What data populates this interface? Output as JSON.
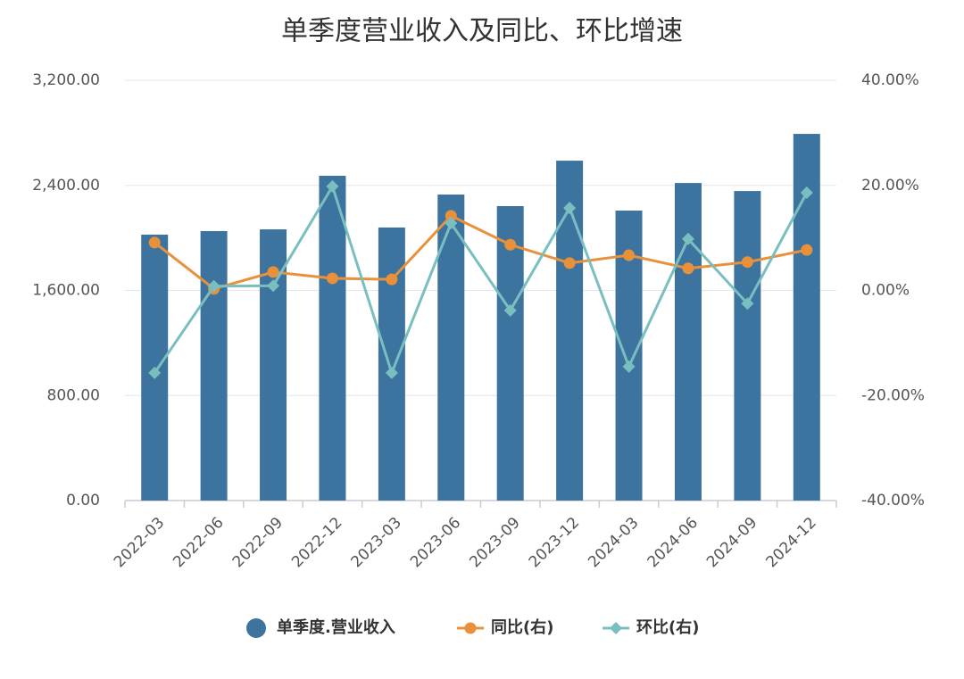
{
  "chart_data": {
    "type": "bar-line",
    "title": "单季度营业收入及同比、环比增速",
    "categories": [
      "2022-03",
      "2022-06",
      "2022-09",
      "2022-12",
      "2023-03",
      "2023-06",
      "2023-09",
      "2023-12",
      "2024-03",
      "2024-06",
      "2024-09",
      "2024-12"
    ],
    "series": [
      {
        "name": "单季度.营业收入",
        "type": "bar",
        "color": "#3d739f",
        "values": [
          2025,
          2052,
          2065,
          2473,
          2079,
          2330,
          2242,
          2588,
          2208,
          2418,
          2357,
          2792
        ]
      },
      {
        "name": "同比(右)",
        "type": "line",
        "marker": "circle",
        "axis": "y2",
        "color": "#e8913a",
        "values": [
          9.1,
          0.3,
          3.5,
          2.3,
          2.1,
          14.2,
          8.7,
          5.2,
          6.7,
          4.2,
          5.4,
          7.7
        ]
      },
      {
        "name": "环比(右)",
        "type": "line",
        "marker": "diamond",
        "axis": "y2",
        "color": "#79bfc0",
        "values": [
          -15.7,
          0.8,
          0.9,
          19.8,
          -15.7,
          12.8,
          -3.8,
          15.7,
          -14.5,
          9.8,
          -2.5,
          18.6
        ]
      }
    ],
    "ylim": [
      0,
      3200
    ],
    "yticks": [
      {
        "value": 0,
        "label": "0.00"
      },
      {
        "value": 800,
        "label": "800.00"
      },
      {
        "value": 1600,
        "label": "1,600.00"
      },
      {
        "value": 2400,
        "label": "2,400.00"
      },
      {
        "value": 3200,
        "label": "3,200.00"
      }
    ],
    "y2lim": [
      -40,
      40
    ],
    "y2ticks": [
      {
        "value": -40,
        "label": "-40.00%"
      },
      {
        "value": -20,
        "label": "-20.00%"
      },
      {
        "value": 0,
        "label": "0.00%"
      },
      {
        "value": 20,
        "label": "20.00%"
      },
      {
        "value": 40,
        "label": "40.00%"
      }
    ],
    "grid": true,
    "legend": "bottom"
  }
}
